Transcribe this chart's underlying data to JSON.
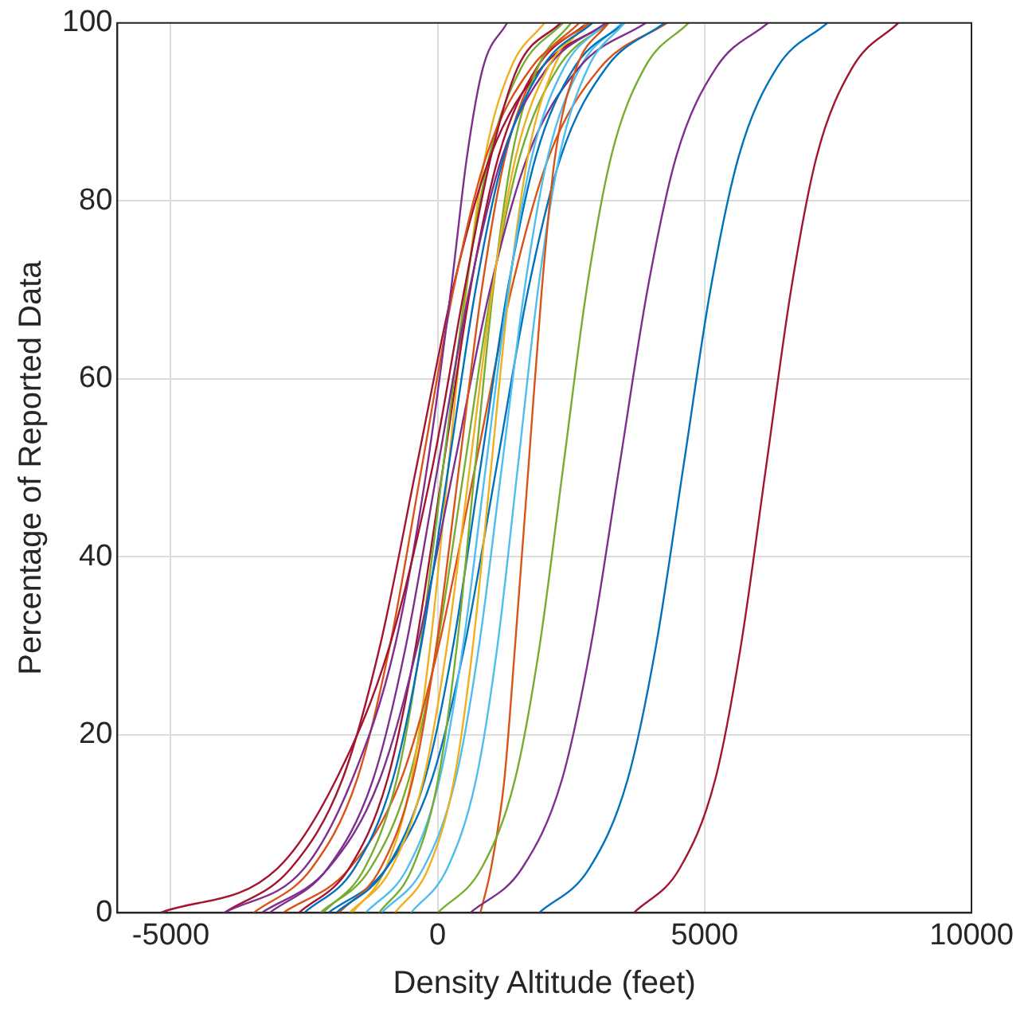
{
  "chart_data": {
    "type": "line",
    "xlabel": "Density Altitude (feet)",
    "ylabel": "Percentage of Reported Data",
    "xlim": [
      -6000,
      10000
    ],
    "xticks": [
      -5000,
      0,
      5000,
      10000
    ],
    "ylim": [
      0,
      100
    ],
    "yticks": [
      0,
      20,
      40,
      60,
      80,
      100
    ],
    "grid": true,
    "series": [
      {
        "color": "#a2142f",
        "x": [
          3675,
          4535,
          5200,
          5680,
          6150,
          6620,
          7100,
          7770,
          8630
        ],
        "values": [
          0,
          5,
          15,
          30,
          50,
          70,
          85,
          95,
          100
        ]
      },
      {
        "color": "#0072bd",
        "x": [
          1900,
          2840,
          3560,
          4090,
          4600,
          5110,
          5640,
          6360,
          7300
        ],
        "values": [
          0,
          5,
          15,
          30,
          50,
          70,
          85,
          95,
          100
        ]
      },
      {
        "color": "#7e2f8e",
        "x": [
          610,
          1580,
          2330,
          2870,
          3400,
          3930,
          4470,
          5220,
          6190
        ],
        "values": [
          0,
          5,
          15,
          30,
          50,
          70,
          85,
          95,
          100
        ]
      },
      {
        "color": "#77ac30",
        "x": [
          0,
          820,
          1450,
          1910,
          2350,
          2790,
          3250,
          3880,
          4700
        ],
        "values": [
          0,
          5,
          15,
          30,
          50,
          70,
          85,
          95,
          100
        ]
      },
      {
        "color": "#d95319",
        "x": [
          800,
          1000,
          1250,
          1450,
          1700,
          1950,
          2200,
          2600,
          3200
        ],
        "values": [
          0,
          5,
          15,
          30,
          50,
          70,
          85,
          95,
          100
        ]
      },
      {
        "color": "#4dbeee",
        "x": [
          -500,
          180,
          720,
          1120,
          1500,
          1880,
          2280,
          2820,
          3500
        ],
        "values": [
          0,
          5,
          15,
          30,
          50,
          70,
          85,
          95,
          100
        ]
      },
      {
        "color": "#a2142f",
        "x": [
          -5200,
          -3000,
          -1900,
          -900,
          -100,
          500,
          1000,
          1500,
          2300
        ],
        "values": [
          0,
          5,
          15,
          30,
          50,
          70,
          85,
          95,
          100
        ]
      },
      {
        "color": "#7e2f8e",
        "x": [
          -4000,
          -2500,
          -1600,
          -800,
          -200,
          250,
          550,
          850,
          1300
        ],
        "values": [
          0,
          5,
          15,
          30,
          50,
          70,
          85,
          95,
          100
        ]
      },
      {
        "color": "#d95319",
        "x": [
          -3450,
          -2360,
          -1510,
          -895,
          -300,
          295,
          910,
          1760,
          2850
        ],
        "values": [
          0,
          5,
          15,
          30,
          50,
          70,
          85,
          95,
          100
        ]
      },
      {
        "color": "#0072bd",
        "x": [
          -2500,
          -1560,
          -840,
          -310,
          200,
          710,
          1240,
          1960,
          2900
        ],
        "values": [
          0,
          5,
          15,
          30,
          50,
          70,
          85,
          95,
          100
        ]
      },
      {
        "color": "#edb120",
        "x": [
          -1650,
          -870,
          -265,
          175,
          600,
          1025,
          1465,
          2070,
          2850
        ],
        "values": [
          0,
          5,
          15,
          30,
          50,
          70,
          85,
          95,
          100
        ]
      },
      {
        "color": "#7e2f8e",
        "x": [
          -3150,
          -2060,
          -1210,
          -595,
          0,
          595,
          1210,
          2060,
          3150
        ],
        "values": [
          0,
          5,
          15,
          30,
          50,
          70,
          85,
          95,
          100
        ]
      },
      {
        "color": "#77ac30",
        "x": [
          -1100,
          -475,
          10,
          360,
          700,
          1040,
          1390,
          1875,
          2500
        ],
        "values": [
          0,
          5,
          15,
          30,
          50,
          70,
          85,
          95,
          100
        ]
      },
      {
        "color": "#4dbeee",
        "x": [
          -1350,
          -570,
          35,
          475,
          900,
          1325,
          1765,
          2370,
          3150
        ],
        "values": [
          0,
          5,
          15,
          30,
          50,
          70,
          85,
          95,
          100
        ]
      },
      {
        "color": "#a2142f",
        "x": [
          -4000,
          -2750,
          -1785,
          -1080,
          -400,
          280,
          985,
          1950,
          3200
        ],
        "values": [
          0,
          5,
          15,
          30,
          50,
          70,
          85,
          95,
          100
        ]
      },
      {
        "color": "#0072bd",
        "x": [
          -1900,
          -960,
          -240,
          290,
          800,
          1310,
          1840,
          2560,
          3500
        ],
        "values": [
          0,
          5,
          15,
          30,
          50,
          70,
          85,
          95,
          100
        ]
      },
      {
        "color": "#d95319",
        "x": [
          -1850,
          -1070,
          -465,
          -25,
          400,
          825,
          1265,
          1870,
          2650
        ],
        "values": [
          0,
          5,
          15,
          30,
          50,
          70,
          85,
          95,
          100
        ]
      },
      {
        "color": "#edb120",
        "x": [
          -800,
          -175,
          310,
          660,
          1000,
          1340,
          1690,
          2175,
          2800
        ],
        "values": [
          0,
          5,
          15,
          30,
          50,
          70,
          85,
          95,
          100
        ]
      },
      {
        "color": "#7e2f8e",
        "x": [
          -3300,
          -2050,
          -1085,
          -380,
          300,
          980,
          1685,
          2650,
          3900
        ],
        "values": [
          0,
          5,
          15,
          30,
          50,
          70,
          85,
          95,
          100
        ]
      },
      {
        "color": "#77ac30",
        "x": [
          -2150,
          -1370,
          -765,
          -325,
          100,
          525,
          965,
          1570,
          2350
        ],
        "values": [
          0,
          5,
          15,
          30,
          50,
          70,
          85,
          95,
          100
        ]
      },
      {
        "color": "#4dbeee",
        "x": [
          -1050,
          -270,
          335,
          775,
          1200,
          1625,
          2065,
          2670,
          3450
        ],
        "values": [
          0,
          5,
          15,
          30,
          50,
          70,
          85,
          95,
          100
        ]
      },
      {
        "color": "#a2142f",
        "x": [
          -2600,
          -1660,
          -940,
          -410,
          100,
          610,
          1140,
          1860,
          2800
        ],
        "values": [
          0,
          5,
          15,
          30,
          50,
          70,
          85,
          95,
          100
        ]
      },
      {
        "color": "#0072bd",
        "x": [
          -2050,
          -960,
          -110,
          505,
          1100,
          1695,
          2310,
          3160,
          4250
        ],
        "values": [
          0,
          5,
          15,
          30,
          50,
          70,
          85,
          95,
          100
        ]
      },
      {
        "color": "#d95319",
        "x": [
          -2900,
          -1650,
          -685,
          20,
          700,
          1380,
          2085,
          3050,
          4300
        ],
        "values": [
          0,
          5,
          15,
          30,
          50,
          70,
          85,
          95,
          100
        ]
      },
      {
        "color": "#edb120",
        "x": [
          -1600,
          -975,
          -490,
          -140,
          200,
          540,
          890,
          1375,
          2000
        ],
        "values": [
          0,
          5,
          15,
          30,
          50,
          70,
          85,
          95,
          100
        ]
      },
      {
        "color": "#77ac30",
        "x": [
          -2200,
          -1260,
          -540,
          -10,
          500,
          1010,
          1540,
          2260,
          3200
        ],
        "values": [
          0,
          5,
          15,
          30,
          50,
          70,
          85,
          95,
          100
        ]
      }
    ]
  }
}
